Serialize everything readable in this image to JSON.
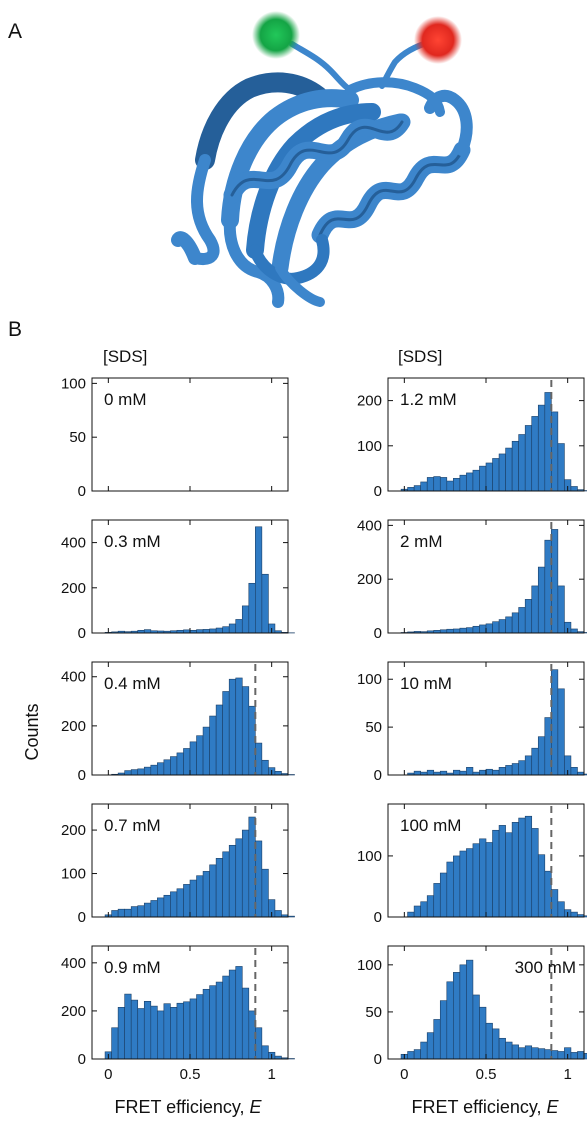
{
  "figure": {
    "panel_labels": [
      "A",
      "B"
    ],
    "column_headers": [
      "[SDS]",
      "[SDS]"
    ],
    "shared_ylabel": "Counts",
    "xlabel_prefix": "FRET efficiency, ",
    "xlabel_italic": "E",
    "colors": {
      "bar_fill": "#2f7bc4",
      "bar_edge": "#1b3f66",
      "protein": "#3d86cc",
      "protein_dark": "#255f99",
      "donor_dye": "#1aa84a",
      "acceptor_dye": "#e8352a",
      "reference_line": "#666666"
    },
    "structure_description_icons": [
      "protein-ribbon-icon",
      "donor-dye-icon",
      "acceptor-dye-icon"
    ]
  },
  "chart_data": [
    {
      "type": "bar",
      "label": "0 mM",
      "label_position": "top-left",
      "yticks": [
        0,
        50,
        100
      ],
      "ylim": [
        0,
        105
      ],
      "ref_line": false,
      "xticks": [
        "0",
        "0.5",
        "1"
      ],
      "xlim": [
        -0.1,
        1.1
      ],
      "bin_width": 0.04,
      "bin_start": -0.06,
      "values": [
        0,
        0,
        0,
        0,
        0,
        0,
        0,
        0,
        0,
        0,
        0,
        0,
        0,
        0,
        0,
        0,
        0,
        0,
        0,
        0,
        0,
        0,
        0,
        0,
        0,
        0,
        0,
        0,
        0,
        0
      ]
    },
    {
      "type": "bar",
      "label": "1.2 mM",
      "label_position": "top-left",
      "yticks": [
        0,
        100,
        200
      ],
      "ylim": [
        0,
        250
      ],
      "ref_line": true,
      "ref_x": 0.9,
      "xticks": [
        "0",
        "0.5",
        "1"
      ],
      "xlim": [
        -0.1,
        1.1
      ],
      "bin_width": 0.04,
      "bin_start": -0.06,
      "values": [
        0,
        4,
        8,
        12,
        20,
        30,
        32,
        30,
        22,
        28,
        35,
        40,
        46,
        55,
        62,
        72,
        82,
        95,
        110,
        125,
        145,
        165,
        190,
        218,
        175,
        105,
        25,
        10,
        3,
        1
      ]
    },
    {
      "type": "bar",
      "label": "0.3 mM",
      "label_position": "top-left",
      "yticks": [
        0,
        200,
        400
      ],
      "ylim": [
        0,
        500
      ],
      "ref_line": false,
      "xticks": [
        "0",
        "0.5",
        "1"
      ],
      "xlim": [
        -0.1,
        1.1
      ],
      "bin_width": 0.04,
      "bin_start": -0.06,
      "values": [
        0,
        3,
        5,
        8,
        6,
        8,
        12,
        15,
        10,
        9,
        8,
        10,
        12,
        14,
        12,
        15,
        16,
        18,
        22,
        28,
        40,
        60,
        120,
        220,
        470,
        260,
        40,
        10,
        3,
        1
      ]
    },
    {
      "type": "bar",
      "label": "2 mM",
      "label_position": "top-left",
      "yticks": [
        0,
        200,
        400
      ],
      "ylim": [
        0,
        420
      ],
      "ref_line": true,
      "ref_x": 0.9,
      "xticks": [
        "0",
        "0.5",
        "1"
      ],
      "xlim": [
        -0.1,
        1.1
      ],
      "bin_width": 0.04,
      "bin_start": -0.06,
      "values": [
        0,
        2,
        4,
        6,
        5,
        8,
        10,
        12,
        14,
        15,
        18,
        20,
        25,
        30,
        34,
        42,
        50,
        60,
        75,
        95,
        125,
        175,
        245,
        345,
        385,
        175,
        40,
        15,
        5,
        2
      ]
    },
    {
      "type": "bar",
      "label": "0.4 mM",
      "label_position": "top-left",
      "yticks": [
        0,
        200,
        400
      ],
      "ylim": [
        0,
        460
      ],
      "ref_line": true,
      "ref_x": 0.9,
      "xticks": [
        "0",
        "0.5",
        "1"
      ],
      "xlim": [
        -0.1,
        1.1
      ],
      "bin_width": 0.04,
      "bin_start": -0.06,
      "values": [
        0,
        0,
        3,
        8,
        18,
        22,
        25,
        32,
        40,
        50,
        62,
        75,
        90,
        108,
        135,
        160,
        195,
        240,
        285,
        340,
        390,
        395,
        360,
        280,
        130,
        60,
        30,
        15,
        6,
        2
      ]
    },
    {
      "type": "bar",
      "label": "10 mM",
      "label_position": "top-left",
      "yticks": [
        0,
        50,
        100
      ],
      "ylim": [
        0,
        118
      ],
      "ref_line": true,
      "ref_x": 0.9,
      "xticks": [
        "0",
        "0.5",
        "1"
      ],
      "xlim": [
        -0.1,
        1.1
      ],
      "bin_width": 0.04,
      "bin_start": -0.06,
      "values": [
        0,
        0,
        2,
        4,
        3,
        5,
        3,
        4,
        2,
        5,
        4,
        8,
        3,
        5,
        6,
        5,
        8,
        10,
        12,
        15,
        20,
        28,
        40,
        60,
        110,
        90,
        20,
        8,
        3,
        1
      ]
    },
    {
      "type": "bar",
      "label": "0.7 mM",
      "label_position": "top-left",
      "yticks": [
        0,
        100,
        200
      ],
      "ylim": [
        0,
        260
      ],
      "ref_line": true,
      "ref_x": 0.9,
      "xticks": [
        "0",
        "0.5",
        "1"
      ],
      "xlim": [
        -0.1,
        1.1
      ],
      "bin_width": 0.04,
      "bin_start": -0.06,
      "values": [
        0,
        5,
        15,
        18,
        18,
        24,
        26,
        32,
        38,
        44,
        50,
        58,
        65,
        75,
        85,
        95,
        105,
        120,
        135,
        150,
        165,
        180,
        200,
        230,
        175,
        110,
        40,
        15,
        5,
        2
      ]
    },
    {
      "type": "bar",
      "label": "100 mM",
      "label_position": "top-left",
      "yticks": [
        0,
        100
      ],
      "ylim": [
        0,
        185
      ],
      "ref_line": true,
      "ref_x": 0.9,
      "xticks": [
        "0",
        "0.5",
        "1"
      ],
      "xlim": [
        -0.1,
        1.1
      ],
      "bin_width": 0.04,
      "bin_start": -0.06,
      "values": [
        0,
        0,
        8,
        18,
        25,
        35,
        55,
        72,
        90,
        100,
        108,
        112,
        120,
        128,
        122,
        142,
        150,
        138,
        155,
        162,
        165,
        145,
        102,
        75,
        45,
        25,
        12,
        8,
        4,
        2
      ]
    },
    {
      "type": "bar",
      "label": "0.9 mM",
      "label_position": "top-left",
      "yticks": [
        0,
        200,
        400
      ],
      "ylim": [
        0,
        470
      ],
      "ref_line": true,
      "ref_x": 0.9,
      "xticks": [
        "0",
        "0.5",
        "1"
      ],
      "xlim": [
        -0.1,
        1.1
      ],
      "bin_width": 0.04,
      "bin_start": -0.06,
      "values": [
        0,
        30,
        130,
        215,
        270,
        245,
        210,
        240,
        220,
        200,
        230,
        215,
        232,
        238,
        250,
        268,
        290,
        305,
        320,
        345,
        370,
        385,
        295,
        200,
        130,
        55,
        28,
        12,
        5,
        2
      ]
    },
    {
      "type": "bar",
      "label": "300 mM",
      "label_position": "top-right",
      "yticks": [
        0,
        50,
        100
      ],
      "ylim": [
        0,
        120
      ],
      "ref_line": true,
      "ref_x": 0.9,
      "xticks": [
        "0",
        "0.5",
        "1"
      ],
      "xlim": [
        -0.1,
        1.1
      ],
      "bin_width": 0.04,
      "bin_start": -0.06,
      "values": [
        0,
        5,
        8,
        10,
        18,
        28,
        42,
        62,
        82,
        92,
        100,
        105,
        68,
        55,
        38,
        32,
        22,
        18,
        15,
        12,
        14,
        12,
        11,
        10,
        9,
        8,
        12,
        7,
        8,
        6
      ]
    }
  ]
}
